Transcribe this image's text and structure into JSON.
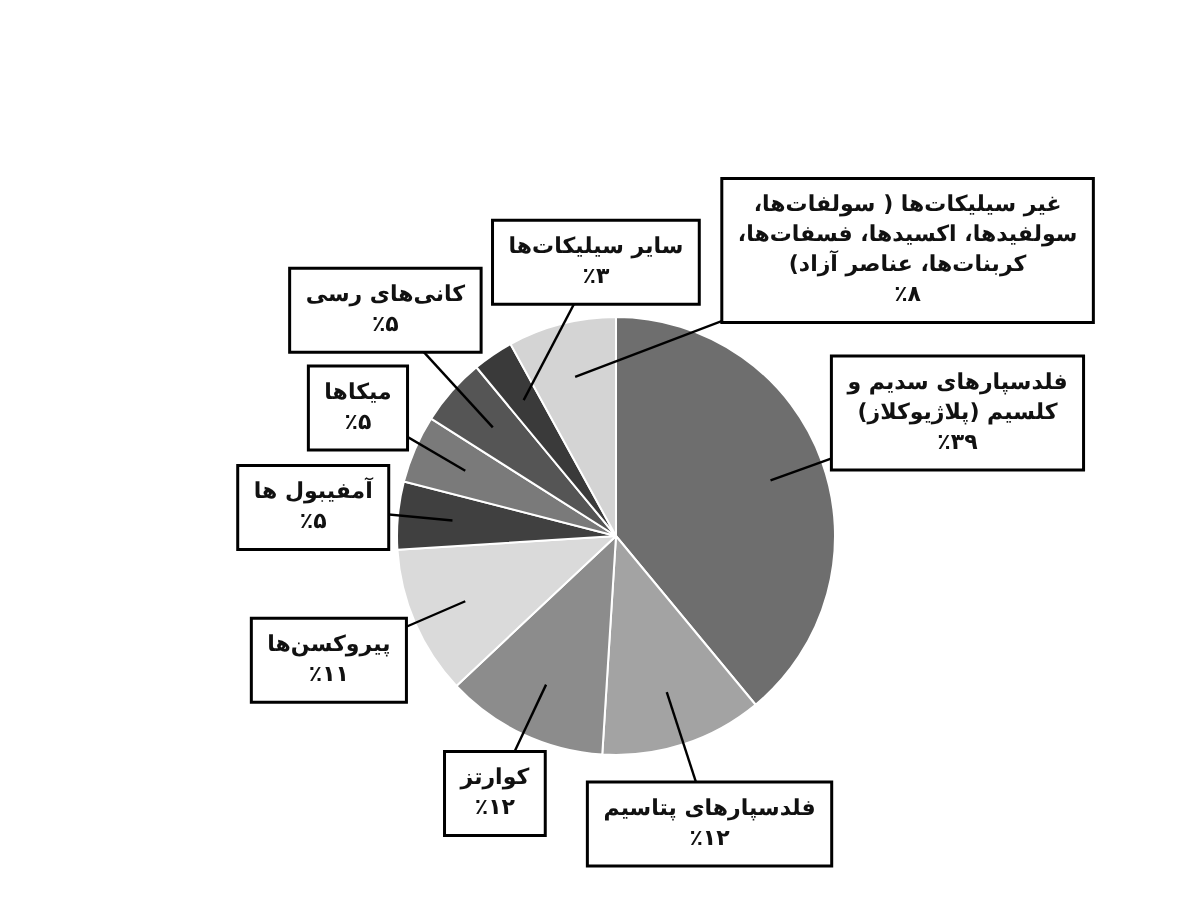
{
  "chart_data": {
    "type": "pie",
    "categories": [
      "فلدسپارهای سدیم و کلسیم (پلاژیوکلاز)",
      "فلدسپارهای پتاسیم",
      "کوارتز",
      "پیروکسن‌ها",
      "آمفیبول ها",
      "میکاها",
      "کانی‌های رسی",
      "سایر سیلیکات‌ها",
      "غیر سیلیکات‌ها ( سولفات‌ها، سولفیدها، اکسیدها، فسفات‌ها، کربنات‌ها، عناصر آزاد)"
    ],
    "values": [
      39,
      12,
      12,
      11,
      5,
      5,
      5,
      3,
      8
    ],
    "value_labels": [
      "٪۳۹",
      "٪۱۲",
      "٪۱۲",
      "٪۱۱",
      "٪۵",
      "٪۵",
      "٪۵",
      "٪۳",
      "٪۸"
    ],
    "colors": [
      "#6e6e6e",
      "#a3a3a3",
      "#8c8c8c",
      "#dadada",
      "#404040",
      "#7a7a7a",
      "#555555",
      "#3a3a3a",
      "#d4d4d4"
    ],
    "legend": false
  }
}
